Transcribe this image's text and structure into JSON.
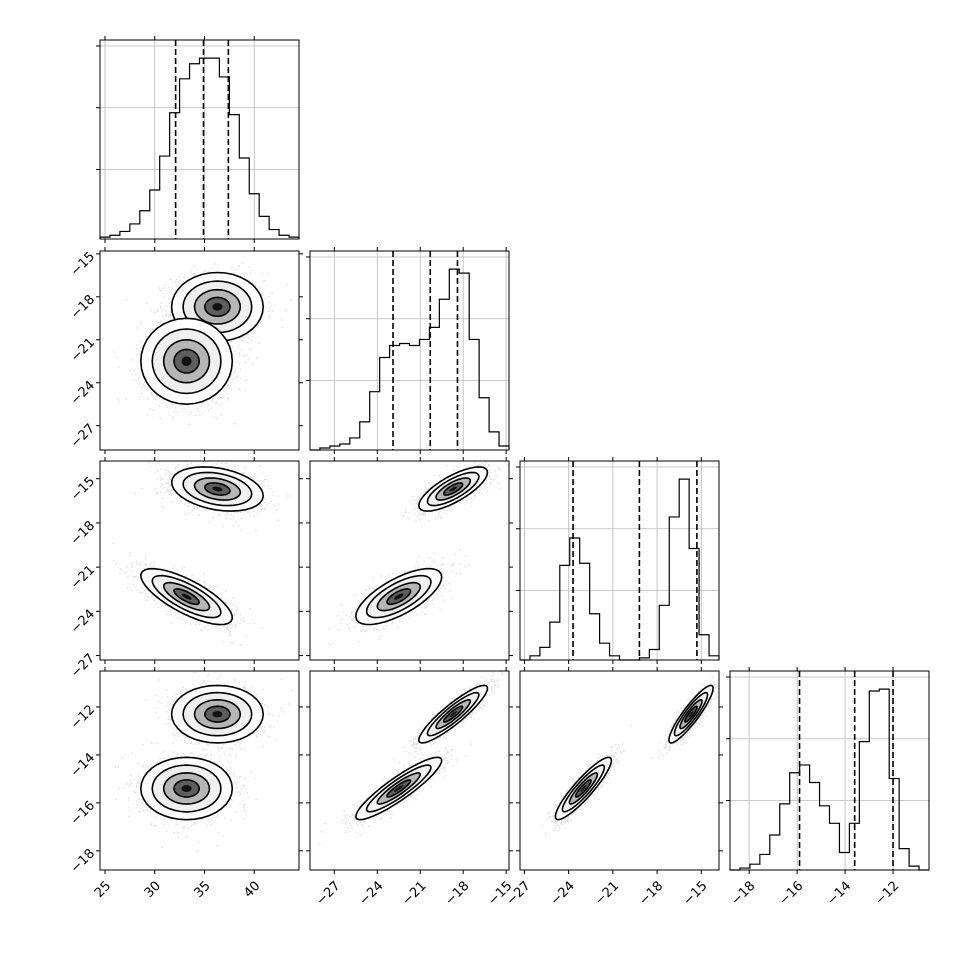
{
  "chart_data": {
    "type": "corner",
    "parameters": [
      {
        "range": [
          24.5,
          44.5
        ],
        "ticks": [
          25,
          30,
          35,
          40
        ],
        "tick_labels": [
          "25",
          "30",
          "35",
          "40"
        ],
        "quantiles": [
          32.1,
          34.9,
          37.4
        ],
        "hist": [
          1,
          2,
          4,
          8,
          15,
          26,
          44,
          67,
          85,
          93,
          96,
          96,
          86,
          66,
          43,
          24,
          12,
          5,
          2,
          1
        ]
      },
      {
        "range": [
          -28.7,
          -14.8
        ],
        "ticks": [
          -27,
          -24,
          -21,
          -18,
          -15
        ],
        "tick_labels": [
          "−27",
          "−24",
          "−21",
          "−18",
          "−15"
        ],
        "quantiles": [
          -22.9,
          -20.3,
          -18.4
        ],
        "hist": [
          0,
          1,
          2,
          3,
          6,
          14,
          29,
          46,
          52,
          53,
          52,
          55,
          61,
          75,
          90,
          88,
          55,
          26,
          9,
          2
        ]
      },
      {
        "range": [
          -27.3,
          -13.8
        ],
        "ticks": [
          -27,
          -24,
          -21,
          -18,
          -15
        ],
        "tick_labels": [
          "−27",
          "−24",
          "−21",
          "−18",
          "−15"
        ],
        "quantiles": [
          -23.7,
          -19.2,
          -15.3
        ],
        "hist": [
          0,
          2,
          6,
          18,
          45,
          58,
          46,
          22,
          8,
          2,
          0,
          0,
          1,
          5,
          26,
          68,
          86,
          53,
          12,
          2
        ]
      },
      {
        "range": [
          -18.8,
          -10.5
        ],
        "ticks": [
          -18,
          -16,
          -14,
          -12
        ],
        "tick_labels": [
          "−18",
          "−16",
          "−14",
          "−12"
        ],
        "quantiles": [
          -15.9,
          -13.6,
          -12.0
        ],
        "hist": [
          0,
          1,
          3,
          8,
          18,
          34,
          50,
          54,
          45,
          33,
          24,
          9,
          24,
          66,
          92,
          93,
          47,
          11,
          2,
          0
        ]
      }
    ],
    "modes": [
      {
        "mean": [
          36.3,
          -18.7,
          -15.7,
          -12.3
        ],
        "sd": [
          2.3,
          1.2,
          0.75,
          0.6
        ]
      },
      {
        "mean": [
          33.2,
          -22.5,
          -23.0,
          -15.4
        ],
        "sd": [
          2.3,
          1.5,
          0.95,
          0.65
        ]
      }
    ],
    "mode_correlations": [
      [
        [
          1.0,
          0.0,
          -0.3,
          0.0
        ],
        [
          0.0,
          1.0,
          0.75,
          0.9
        ],
        [
          -0.3,
          0.75,
          1.0,
          0.9
        ],
        [
          0.0,
          0.9,
          0.9,
          1.0
        ]
      ],
      [
        [
          1.0,
          0.0,
          -0.75,
          0.0
        ],
        [
          0.0,
          1.0,
          0.7,
          0.9
        ],
        [
          -0.75,
          0.7,
          1.0,
          0.9
        ],
        [
          0.0,
          0.9,
          0.9,
          1.0
        ]
      ]
    ],
    "quantile_levels": [
      0.16,
      0.5,
      0.84
    ],
    "grid": true,
    "colors": {
      "points": "#404040",
      "lines": "#000000",
      "grid": "#b8b8b8",
      "background": "#ffffff"
    }
  }
}
